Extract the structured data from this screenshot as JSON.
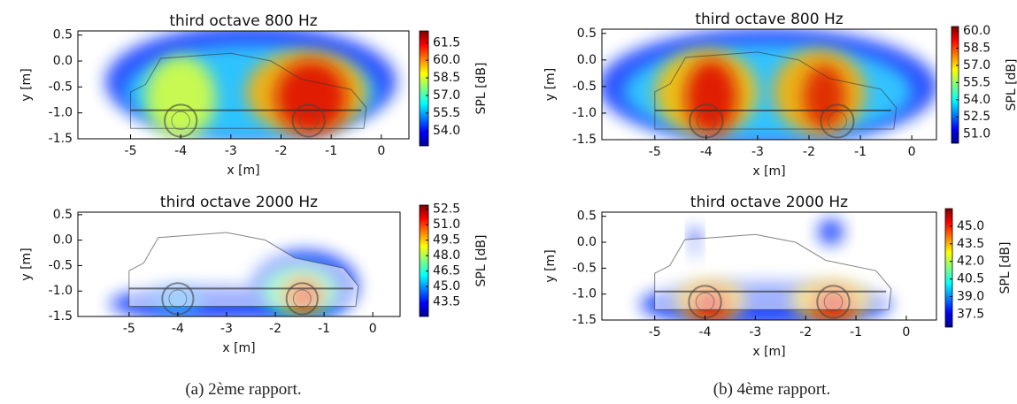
{
  "figure": {
    "panels": [
      {
        "title": "third octave 800 Hz",
        "xlabel": "x [m]",
        "ylabel": "y [m]",
        "colorbar_label": "SPL [dB]",
        "xlim": [
          -6.05,
          0.55
        ],
        "ylim": [
          -1.5,
          0.58
        ],
        "xticks": [
          -5,
          -4,
          -3,
          -2,
          -1,
          0
        ],
        "yticks": [
          0.5,
          {
            "value": 0,
            "label": "0.0"
          },
          -0.5,
          {
            "value": -1,
            "label": "-1.0"
          },
          -1.5
        ],
        "clim": [
          52.7,
          62.5
        ],
        "cticks": [
          61.5,
          {
            "value": 60,
            "label": "60.0"
          },
          58.5,
          {
            "value": 57,
            "label": "57.0"
          },
          55.5,
          {
            "value": 54,
            "label": "54.0"
          }
        ]
      },
      {
        "title": "third octave 2000 Hz",
        "xlabel": "x [m]",
        "ylabel": "y [m]",
        "colorbar_label": "SPL [dB]",
        "xlim": [
          -6.05,
          0.56
        ],
        "ylim": [
          -1.5,
          0.55
        ],
        "xticks": [
          -5,
          -4,
          -3,
          -2,
          -1,
          0
        ],
        "yticks": [
          0.5,
          {
            "value": 0,
            "label": "0.0"
          },
          -0.5,
          {
            "value": -1,
            "label": "-1.0"
          },
          -1.5
        ],
        "clim": [
          42.1,
          52.9
        ],
        "cticks": [
          52.5,
          {
            "value": 51,
            "label": "51.0"
          },
          49.5,
          {
            "value": 48,
            "label": "48.0"
          },
          46.5,
          {
            "value": 45,
            "label": "45.0"
          },
          43.5
        ]
      },
      {
        "title": "third octave 800 Hz",
        "xlabel": "x [m]",
        "ylabel": "y [m]",
        "colorbar_label": "SPL [dB]",
        "xlim": [
          -6.03,
          0.48
        ],
        "ylim": [
          -1.5,
          0.58
        ],
        "xticks": [
          -5,
          -4,
          -3,
          -2,
          -1,
          0
        ],
        "yticks": [
          0.5,
          {
            "value": 0,
            "label": "0.0"
          },
          -0.5,
          {
            "value": -1,
            "label": "-1.0"
          },
          -1.5
        ],
        "clim": [
          50.2,
          60.4
        ],
        "cticks": [
          {
            "value": 60,
            "label": "60.0"
          },
          58.5,
          {
            "value": 57,
            "label": "57.0"
          },
          55.5,
          {
            "value": 54,
            "label": "54.0"
          },
          52.5,
          {
            "value": 51,
            "label": "51.0"
          }
        ]
      },
      {
        "title": "third octave 2000 Hz",
        "xlabel": "x [m]",
        "ylabel": "y [m]",
        "colorbar_label": "SPL [dB]",
        "xlim": [
          -6.05,
          0.6
        ],
        "ylim": [
          -1.5,
          0.58
        ],
        "xticks": [
          -5,
          -4,
          -3,
          -2,
          -1,
          0
        ],
        "yticks": [
          0.5,
          {
            "value": 0,
            "label": "0.0"
          },
          -0.5,
          {
            "value": -1,
            "label": "-1.0"
          },
          -1.5
        ],
        "clim": [
          36.4,
          46.5
        ],
        "cticks": [
          {
            "value": 45,
            "label": "45.0"
          },
          43.5,
          {
            "value": 42,
            "label": "42.0"
          },
          40.5,
          {
            "value": 39,
            "label": "39.0"
          },
          37.5
        ]
      }
    ],
    "captions": [
      "(a) 2ème rapport.",
      "(b) 4ème rapport."
    ]
  }
}
